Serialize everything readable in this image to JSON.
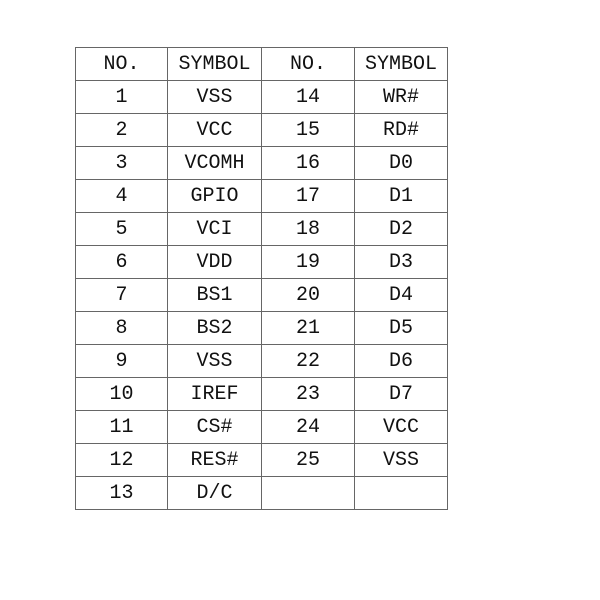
{
  "headers": [
    "NO.",
    "SYMBOL",
    "NO.",
    "SYMBOL"
  ],
  "rows": [
    [
      "1",
      "VSS",
      "14",
      "WR#"
    ],
    [
      "2",
      "VCC",
      "15",
      "RD#"
    ],
    [
      "3",
      "VCOMH",
      "16",
      "D0"
    ],
    [
      "4",
      "GPIO",
      "17",
      "D1"
    ],
    [
      "5",
      "VCI",
      "18",
      "D2"
    ],
    [
      "6",
      "VDD",
      "19",
      "D3"
    ],
    [
      "7",
      "BS1",
      "20",
      "D4"
    ],
    [
      "8",
      "BS2",
      "21",
      "D5"
    ],
    [
      "9",
      "VSS",
      "22",
      "D6"
    ],
    [
      "10",
      "IREF",
      "23",
      "D7"
    ],
    [
      "11",
      "CS#",
      "24",
      "VCC"
    ],
    [
      "12",
      "RES#",
      "25",
      "VSS"
    ],
    [
      "13",
      "D/C",
      "",
      ""
    ]
  ]
}
